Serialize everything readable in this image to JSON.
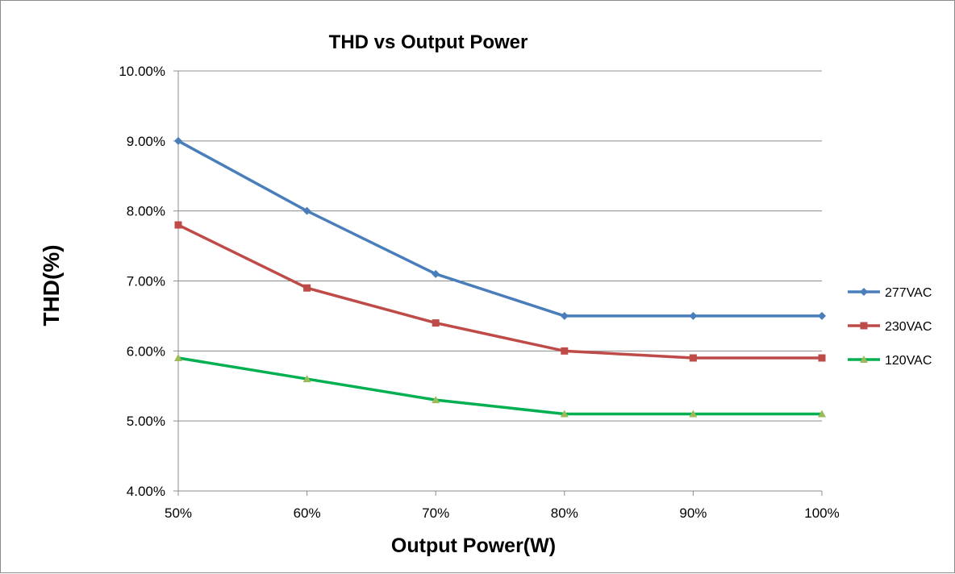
{
  "chart_data": {
    "type": "line",
    "title": "THD vs Output Power",
    "xlabel": "Output Power(W)",
    "ylabel": "THD(%)",
    "categories": [
      "50%",
      "60%",
      "70%",
      "80%",
      "90%",
      "100%"
    ],
    "ylim": [
      4.0,
      10.0
    ],
    "yticks": [
      4.0,
      5.0,
      6.0,
      7.0,
      8.0,
      9.0,
      10.0
    ],
    "ytick_labels": [
      "4.00%",
      "5.00%",
      "6.00%",
      "7.00%",
      "8.00%",
      "9.00%",
      "10.00%"
    ],
    "grid": "horizontal",
    "legend_position": "right",
    "series": [
      {
        "name": "277VAC",
        "color": "#4a7ebb",
        "marker": "diamond",
        "values": [
          9.0,
          8.0,
          7.1,
          6.5,
          6.5,
          6.5
        ]
      },
      {
        "name": "230VAC",
        "color": "#be4b48",
        "marker": "square",
        "values": [
          7.8,
          6.9,
          6.4,
          6.0,
          5.9,
          5.9
        ]
      },
      {
        "name": "120VAC",
        "color": "#00b050",
        "marker": "triangle",
        "marker_color": "#9bbb59",
        "values": [
          5.9,
          5.6,
          5.3,
          5.1,
          5.1,
          5.1
        ]
      }
    ]
  }
}
